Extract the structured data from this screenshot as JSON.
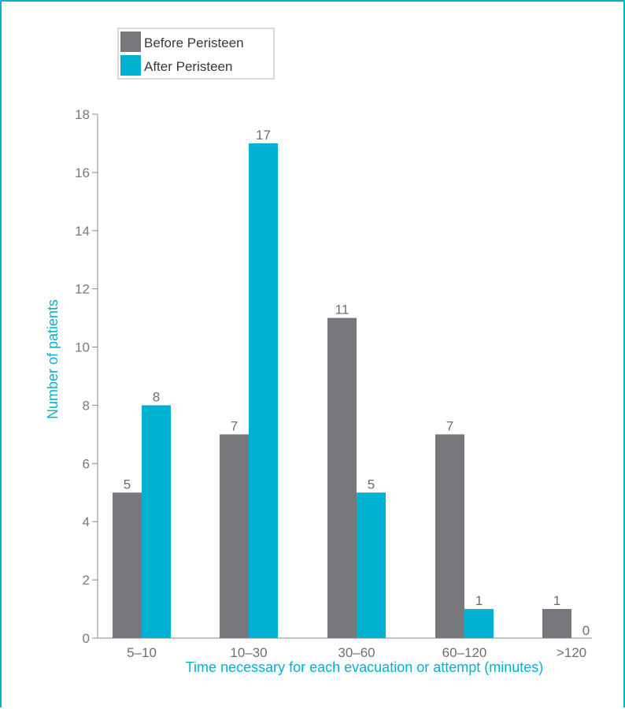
{
  "chart_data": {
    "type": "bar",
    "title": "",
    "xlabel": "Time necessary for each evacuation or attempt (minutes)",
    "ylabel": "Number of patients",
    "ylim": [
      0,
      18
    ],
    "yticks": [
      0,
      2,
      4,
      6,
      8,
      10,
      12,
      14,
      16,
      18
    ],
    "categories": [
      "5–10",
      "10–30",
      "30–60",
      "60–120",
      ">120"
    ],
    "series": [
      {
        "name": "Before Peristeen",
        "color": "#77787b",
        "values": [
          5,
          7,
          11,
          7,
          1
        ]
      },
      {
        "name": "After Peristeen",
        "color": "#00b2d2",
        "values": [
          8,
          17,
          5,
          1,
          0
        ]
      }
    ],
    "legend": "top-left",
    "grid": false,
    "data_labels": true
  },
  "colors": {
    "accent": "#00b2d2",
    "frame": "#00b2d2",
    "axis": "#888888"
  }
}
